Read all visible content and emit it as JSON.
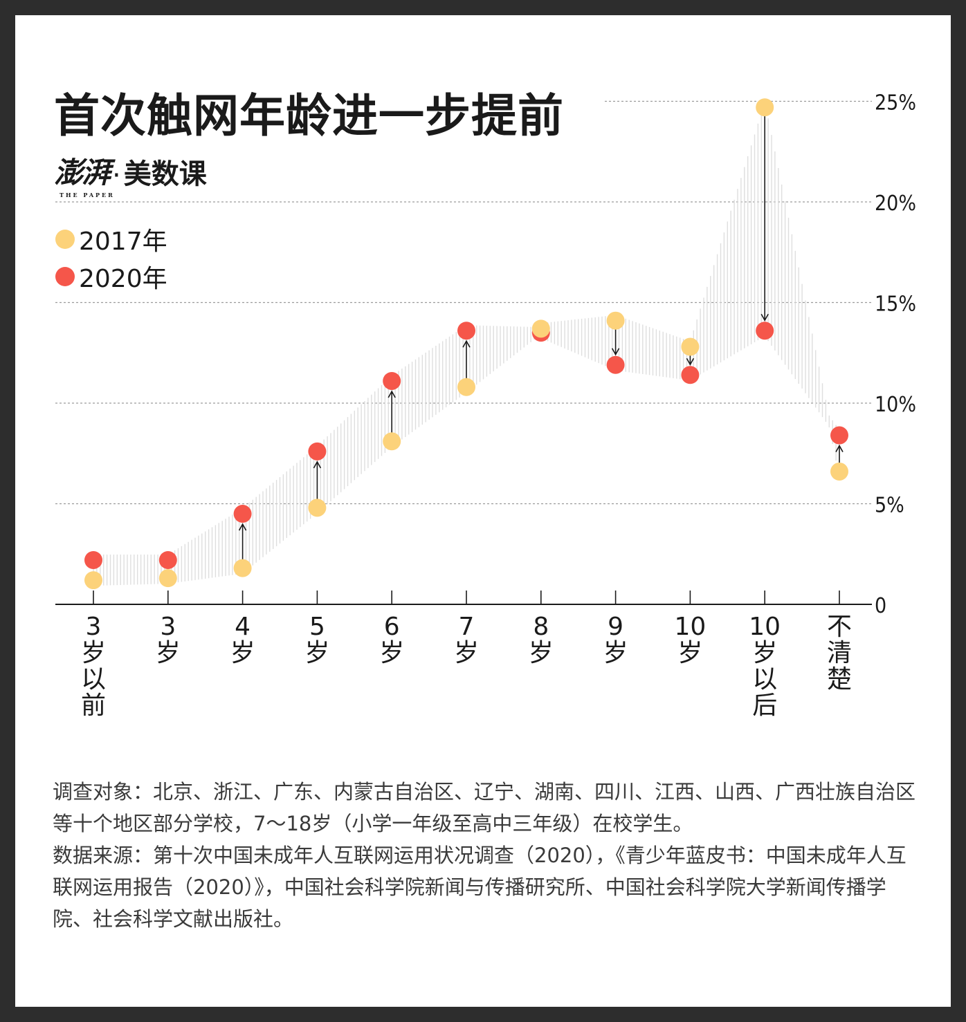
{
  "header": {
    "title": "首次触网年龄进一步提前",
    "brand_logo": "澎湃",
    "brand_logo_en": "THE PAPER",
    "brand_separator": "·",
    "brand_name": "美数课"
  },
  "legend": [
    {
      "label": "2017年",
      "color": "#fcd27a"
    },
    {
      "label": "2020年",
      "color": "#f5564a"
    }
  ],
  "chart_data": {
    "type": "scatter",
    "title": "首次触网年龄进一步提前",
    "categories": [
      "3\n岁\n以\n前",
      "3\n岁",
      "4\n岁",
      "5\n岁",
      "6\n岁",
      "7\n岁",
      "8\n岁",
      "9\n岁",
      "10\n岁",
      "10\n岁\n以\n后",
      "不\n清\n楚"
    ],
    "series": [
      {
        "name": "2017年",
        "color": "#fcd27a",
        "values": [
          1.2,
          1.3,
          1.8,
          4.8,
          8.1,
          10.8,
          13.7,
          14.1,
          12.8,
          24.7,
          6.6
        ]
      },
      {
        "name": "2020年",
        "color": "#f5564a",
        "values": [
          2.2,
          2.2,
          4.5,
          7.6,
          11.1,
          13.6,
          13.5,
          11.9,
          11.4,
          13.6,
          8.4
        ]
      }
    ],
    "yticks": [
      "0",
      "5%",
      "10%",
      "15%",
      "20%",
      "25%"
    ],
    "ylim": [
      0,
      25
    ],
    "grid": true,
    "legend_position": "top-left",
    "arrows": "2017 to 2020 change"
  },
  "notes": [
    "调查对象：北京、浙江、广东、内蒙古自治区、辽宁、湖南、四川、江西、山西、广西壮族自治区等十个地区部分学校，7～18岁（小学一年级至高中三年级）在校学生。",
    "数据来源：第十次中国未成年人互联网运用状况调查（2020），《青少年蓝皮书：中国未成年人互联网运用报告（2020）》，中国社会科学院新闻与传播研究所、中国社会科学院大学新闻传播学院、社会科学文献出版社。"
  ]
}
